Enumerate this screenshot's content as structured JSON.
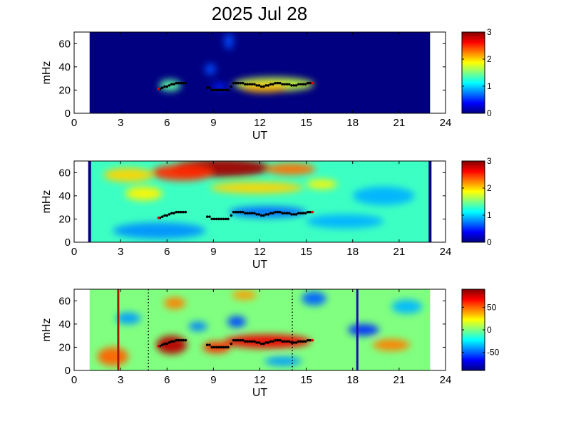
{
  "title": "2025 Jul 28",
  "chart_data": [
    {
      "type": "heatmap",
      "panel": "top",
      "xlabel": "UT",
      "ylabel": "mHz",
      "xlim": [
        0,
        24
      ],
      "ylim": [
        0,
        70
      ],
      "xticks": [
        0,
        3,
        6,
        9,
        12,
        15,
        18,
        21,
        24
      ],
      "yticks": [
        0,
        20,
        40,
        60
      ],
      "data_range_ut": [
        1,
        23
      ],
      "colorbar": {
        "range": [
          0,
          3
        ],
        "ticks": [
          0,
          1,
          2,
          3
        ]
      },
      "background_value": 0,
      "blobs": [
        {
          "ut": 6.2,
          "mhz": 24,
          "rx": 0.7,
          "ry": 5,
          "level": 1.4
        },
        {
          "ut": 12.9,
          "mhz": 25,
          "rx": 2.6,
          "ry": 6,
          "level": 1.7
        },
        {
          "ut": 12.3,
          "mhz": 22,
          "rx": 1.5,
          "ry": 4,
          "level": 2.1
        },
        {
          "ut": 8.8,
          "mhz": 38,
          "rx": 0.35,
          "ry": 5,
          "level": 0.6
        },
        {
          "ut": 10.0,
          "mhz": 62,
          "rx": 0.3,
          "ry": 7,
          "level": 0.6
        },
        {
          "ut": 9.4,
          "mhz": 23,
          "rx": 0.5,
          "ry": 3,
          "level": 0.45
        }
      ],
      "grid": false
    },
    {
      "type": "heatmap",
      "panel": "middle",
      "xlabel": "UT",
      "ylabel": "mHz",
      "xlim": [
        0,
        24
      ],
      "ylim": [
        0,
        70
      ],
      "xticks": [
        0,
        3,
        6,
        9,
        12,
        15,
        18,
        21,
        24
      ],
      "yticks": [
        0,
        20,
        40,
        60
      ],
      "data_range_ut": [
        1,
        23
      ],
      "colorbar": {
        "range": [
          0,
          3
        ],
        "ticks": [
          0,
          1,
          2,
          3
        ]
      },
      "background_value": 1.3,
      "boundary_lines_ut": [
        1,
        23
      ],
      "blobs": [
        {
          "ut": 9.5,
          "mhz": 64,
          "rx": 3.2,
          "ry": 8,
          "level": 2.9
        },
        {
          "ut": 7.0,
          "mhz": 60,
          "rx": 2.0,
          "ry": 7,
          "level": 2.5
        },
        {
          "ut": 14.0,
          "mhz": 63,
          "rx": 1.6,
          "ry": 5,
          "level": 2.3
        },
        {
          "ut": 3.5,
          "mhz": 58,
          "rx": 1.6,
          "ry": 6,
          "level": 2.0
        },
        {
          "ut": 11.8,
          "mhz": 47,
          "rx": 3.0,
          "ry": 5,
          "level": 2.0
        },
        {
          "ut": 4.5,
          "mhz": 42,
          "rx": 1.2,
          "ry": 6,
          "level": 1.9
        },
        {
          "ut": 12.5,
          "mhz": 26,
          "rx": 2.5,
          "ry": 5,
          "level": 0.7
        },
        {
          "ut": 5.5,
          "mhz": 10,
          "rx": 3.0,
          "ry": 7,
          "level": 0.8
        },
        {
          "ut": 17.5,
          "mhz": 18,
          "rx": 2.5,
          "ry": 6,
          "level": 0.9
        },
        {
          "ut": 20.0,
          "mhz": 40,
          "rx": 2.0,
          "ry": 8,
          "level": 0.9
        },
        {
          "ut": 16.0,
          "mhz": 50,
          "rx": 1.0,
          "ry": 4,
          "level": 1.9
        }
      ],
      "grid": false
    },
    {
      "type": "heatmap",
      "panel": "bottom",
      "xlabel": "UT",
      "ylabel": "mHz",
      "xlim": [
        0,
        24
      ],
      "ylim": [
        0,
        70
      ],
      "xticks": [
        0,
        3,
        6,
        9,
        12,
        15,
        18,
        21,
        24
      ],
      "yticks": [
        0,
        20,
        40,
        60
      ],
      "data_range_ut": [
        1,
        23
      ],
      "colorbar": {
        "range": [
          -90,
          90
        ],
        "ticks": [
          50,
          0,
          -50
        ]
      },
      "background_value": 0,
      "markers": [
        {
          "ut": 2.85,
          "style": "solid",
          "color": "#aa1a00"
        },
        {
          "ut": 4.8,
          "style": "dotted",
          "color": "#000000"
        },
        {
          "ut": 14.1,
          "style": "dotted",
          "color": "#000000"
        },
        {
          "ut": 18.3,
          "style": "solid",
          "color": "#1a10b0"
        }
      ],
      "blobs": [
        {
          "ut": 6.3,
          "mhz": 22,
          "rx": 1.0,
          "ry": 8,
          "level": 80
        },
        {
          "ut": 12.5,
          "mhz": 25,
          "rx": 2.8,
          "ry": 6,
          "level": 70
        },
        {
          "ut": 9.2,
          "mhz": 20,
          "rx": 0.9,
          "ry": 5,
          "level": 60
        },
        {
          "ut": 2.5,
          "mhz": 12,
          "rx": 1.0,
          "ry": 8,
          "level": 50
        },
        {
          "ut": 10.5,
          "mhz": 42,
          "rx": 0.6,
          "ry": 5,
          "level": -55
        },
        {
          "ut": 8.0,
          "mhz": 38,
          "rx": 0.6,
          "ry": 4,
          "level": -45
        },
        {
          "ut": 15.5,
          "mhz": 62,
          "rx": 0.8,
          "ry": 6,
          "level": -50
        },
        {
          "ut": 18.7,
          "mhz": 35,
          "rx": 1.0,
          "ry": 5,
          "level": -60
        },
        {
          "ut": 13.5,
          "mhz": 8,
          "rx": 1.2,
          "ry": 4,
          "level": -40
        },
        {
          "ut": 20.5,
          "mhz": 22,
          "rx": 1.2,
          "ry": 5,
          "level": 45
        },
        {
          "ut": 6.5,
          "mhz": 58,
          "rx": 0.7,
          "ry": 5,
          "level": 45
        },
        {
          "ut": 11.0,
          "mhz": 65,
          "rx": 0.8,
          "ry": 4,
          "level": 40
        },
        {
          "ut": 3.5,
          "mhz": 45,
          "rx": 0.8,
          "ry": 5,
          "level": -40
        },
        {
          "ut": 21.5,
          "mhz": 55,
          "rx": 1.0,
          "ry": 6,
          "level": -35
        }
      ],
      "grid": false
    }
  ],
  "tracks": {
    "black": [
      [
        5.55,
        21
      ],
      [
        5.7,
        22
      ],
      [
        5.85,
        23
      ],
      [
        6.0,
        23
      ],
      [
        6.15,
        24
      ],
      [
        6.3,
        25
      ],
      [
        6.45,
        25
      ],
      [
        6.6,
        26
      ],
      [
        6.75,
        26
      ],
      [
        6.9,
        26
      ],
      [
        7.05,
        26
      ],
      [
        7.2,
        26
      ],
      [
        8.6,
        22
      ],
      [
        8.75,
        22
      ],
      [
        8.9,
        20
      ],
      [
        9.05,
        20
      ],
      [
        9.2,
        20
      ],
      [
        9.35,
        20
      ],
      [
        9.5,
        20
      ],
      [
        9.65,
        20
      ],
      [
        9.8,
        20
      ],
      [
        9.95,
        20
      ],
      [
        10.15,
        23
      ],
      [
        10.3,
        26
      ],
      [
        10.45,
        26
      ],
      [
        10.6,
        26
      ],
      [
        10.75,
        26
      ],
      [
        10.9,
        26
      ],
      [
        11.05,
        25
      ],
      [
        11.2,
        25
      ],
      [
        11.35,
        25
      ],
      [
        11.5,
        25
      ],
      [
        11.65,
        25
      ],
      [
        11.8,
        24
      ],
      [
        11.95,
        24
      ],
      [
        12.1,
        23
      ],
      [
        12.25,
        23
      ],
      [
        12.4,
        24
      ],
      [
        12.55,
        24
      ],
      [
        12.7,
        25
      ],
      [
        12.85,
        25
      ],
      [
        13.0,
        26
      ],
      [
        13.15,
        26
      ],
      [
        13.3,
        26
      ],
      [
        13.45,
        25
      ],
      [
        13.6,
        25
      ],
      [
        13.75,
        25
      ],
      [
        13.9,
        25
      ],
      [
        14.05,
        24
      ],
      [
        14.2,
        24
      ],
      [
        14.35,
        24
      ],
      [
        14.5,
        25
      ],
      [
        14.65,
        25
      ],
      [
        14.8,
        25
      ],
      [
        14.95,
        25
      ],
      [
        15.1,
        26
      ],
      [
        15.25,
        26
      ]
    ],
    "red": [
      [
        5.45,
        21
      ],
      [
        15.4,
        26
      ]
    ]
  }
}
